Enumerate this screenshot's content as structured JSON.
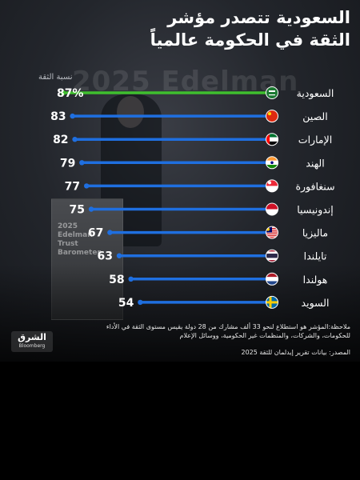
{
  "title_line_1": "السعودية تتصدر مؤشر",
  "title_line_2": "الثقة في الحكومة عالمياً",
  "background": {
    "event_word": "2025 Edelman",
    "podium_text": "2025\nEdelman\nTrust\nBarometer"
  },
  "footer": {
    "note": "ملاحظة:المؤشر هو استطلاع لنحو 33 ألف مشارك من 28 دولة يقيس مستوى الثقة في الأداء للحكومات، والشركات، والمنظمات غير الحكومية، ووسائل الإعلام",
    "source": "المصدر: بيانات تقرير إيدلمان للثقة 2025",
    "logo_main": "الشرق",
    "logo_sub": "Bloomberg"
  },
  "colors": {
    "highlight": "#3fbf2e",
    "bar": "#1f6fe0",
    "text": "#ffffff"
  },
  "chart_data": {
    "type": "bar",
    "orientation": "horizontal",
    "xlabel": "نسبة الثقة",
    "value_suffix": "%",
    "xlim": [
      0,
      87
    ],
    "grid": false,
    "categories": [
      "السعودية",
      "الصين",
      "الإمارات",
      "الهند",
      "سنغافورة",
      "إندونيسيا",
      "ماليزيا",
      "تايلندا",
      "هولندا",
      "السويد"
    ],
    "values": [
      87,
      83,
      82,
      79,
      77,
      75,
      67,
      63,
      58,
      54
    ],
    "highlight_index": 0,
    "flag_icons": [
      "flag-saudi-arabia-icon",
      "flag-china-icon",
      "flag-uae-icon",
      "flag-india-icon",
      "flag-singapore-icon",
      "flag-indonesia-icon",
      "flag-malaysia-icon",
      "flag-thailand-icon",
      "flag-netherlands-icon",
      "flag-sweden-icon"
    ]
  }
}
